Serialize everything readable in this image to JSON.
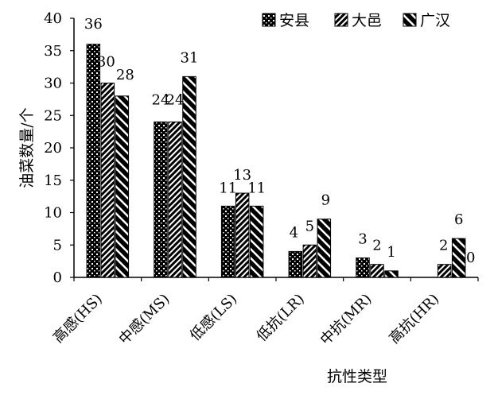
{
  "chart_data": {
    "type": "bar",
    "title": "",
    "xlabel": "抗性类型",
    "ylabel": "油菜数量/个",
    "ylim": [
      0,
      40
    ],
    "yticks": [
      0,
      5,
      10,
      15,
      20,
      25,
      30,
      35,
      40
    ],
    "categories": [
      "高感(HS)",
      "中感(MS)",
      "低感(LS)",
      "低抗(LR)",
      "中抗(MR)",
      "高抗(HR)"
    ],
    "series": [
      {
        "name": "安县",
        "values": [
          36,
          24,
          11,
          4,
          3,
          0
        ],
        "pattern": "dots"
      },
      {
        "name": "大邑",
        "values": [
          30,
          24,
          13,
          5,
          2,
          2
        ],
        "pattern": "hatch"
      },
      {
        "name": "广汉",
        "values": [
          28,
          31,
          11,
          9,
          1,
          6
        ],
        "pattern": "stripes"
      }
    ],
    "data_labels": [
      [
        "36",
        "30",
        "28"
      ],
      [
        "24",
        "24",
        "31"
      ],
      [
        "11",
        "13",
        "11"
      ],
      [
        "4",
        "5",
        "9"
      ],
      [
        "3",
        "2",
        "1"
      ],
      [
        "",
        "2",
        "6"
      ]
    ],
    "extra_label": "0",
    "legend_position": "top-right",
    "grid": false,
    "colors": {
      "bar_dark": "#000000",
      "bar_light": "#ffffff",
      "axis": "#000000"
    }
  }
}
